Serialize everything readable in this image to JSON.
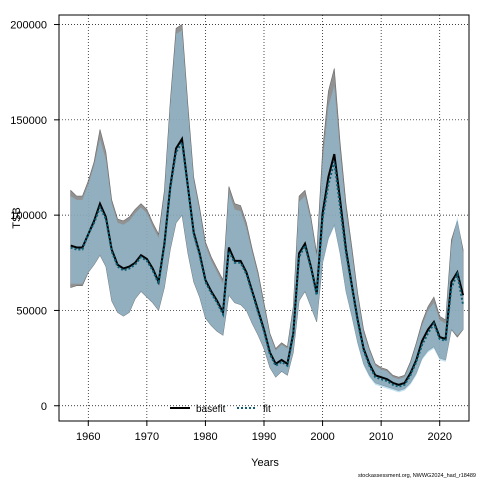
{
  "chart_data": {
    "type": "area",
    "title": "",
    "xlabel": "Years",
    "ylabel": "TSB",
    "xlim": [
      1955,
      2025
    ],
    "ylim": [
      -8000,
      205000
    ],
    "xticks": [
      1960,
      1970,
      1980,
      1990,
      2000,
      2010,
      2020
    ],
    "xtick_labels": [
      "1960",
      "1970",
      "1980",
      "1990",
      "2000",
      "2010",
      "2020"
    ],
    "yticks": [
      0,
      50000,
      100000,
      150000,
      200000
    ],
    "ytick_labels": [
      "0",
      "50000",
      "100000",
      "150000",
      "200000"
    ],
    "grid": true,
    "legend_position": "bottom",
    "x": [
      1957,
      1958,
      1959,
      1960,
      1961,
      1962,
      1963,
      1964,
      1965,
      1966,
      1967,
      1968,
      1969,
      1970,
      1971,
      1972,
      1973,
      1974,
      1975,
      1976,
      1977,
      1978,
      1979,
      1980,
      1981,
      1982,
      1983,
      1984,
      1985,
      1986,
      1987,
      1988,
      1989,
      1990,
      1991,
      1992,
      1993,
      1994,
      1995,
      1996,
      1997,
      1998,
      1999,
      2000,
      2001,
      2002,
      2003,
      2004,
      2005,
      2006,
      2007,
      2008,
      2009,
      2010,
      2011,
      2012,
      2013,
      2014,
      2015,
      2016,
      2017,
      2018,
      2019,
      2020,
      2021,
      2022,
      2023,
      2024
    ],
    "series": [
      {
        "name": "basefit",
        "color": "#000000",
        "band_color": "#7f7f7f",
        "values": [
          84000,
          83000,
          83000,
          90000,
          97000,
          106000,
          99000,
          82000,
          74000,
          72000,
          73000,
          75000,
          79000,
          77000,
          72000,
          65000,
          85000,
          115000,
          135000,
          140000,
          115000,
          91000,
          80000,
          66000,
          60000,
          55000,
          49000,
          83000,
          76000,
          76000,
          70000,
          60000,
          50000,
          40000,
          28000,
          22000,
          24000,
          22000,
          38000,
          80000,
          85000,
          73000,
          59000,
          101000,
          120000,
          132000,
          108000,
          82000,
          63000,
          45000,
          30000,
          22000,
          16000,
          15000,
          14000,
          12000,
          11000,
          12000,
          17000,
          24000,
          34000,
          40000,
          44000,
          36000,
          35000,
          65000,
          70000,
          58000
        ],
        "lower": [
          62000,
          63000,
          63000,
          70000,
          74000,
          79000,
          73000,
          55000,
          49000,
          47000,
          49000,
          56000,
          60000,
          57000,
          54000,
          50000,
          62000,
          82000,
          96000,
          100000,
          80000,
          65000,
          57000,
          46000,
          42000,
          39000,
          37000,
          58000,
          54000,
          53000,
          50000,
          43000,
          37000,
          30000,
          20000,
          15000,
          18000,
          16000,
          28000,
          55000,
          60000,
          52000,
          44000,
          75000,
          88000,
          95000,
          80000,
          60000,
          47000,
          33000,
          22000,
          16000,
          12000,
          11000,
          10000,
          9000,
          8000,
          9000,
          12000,
          17000,
          25000,
          29000,
          31000,
          25000,
          24000,
          40000,
          36000,
          40000
        ],
        "upper": [
          113000,
          110000,
          110000,
          118000,
          128000,
          145000,
          133000,
          108000,
          98000,
          97000,
          99000,
          103000,
          106000,
          103000,
          96000,
          90000,
          113000,
          160000,
          198000,
          200000,
          158000,
          120000,
          104000,
          86000,
          78000,
          72000,
          66000,
          115000,
          106000,
          105000,
          96000,
          82000,
          70000,
          54000,
          38000,
          30000,
          33000,
          31000,
          52000,
          110000,
          113000,
          99000,
          80000,
          134000,
          165000,
          177000,
          138000,
          106000,
          83000,
          59000,
          40000,
          30000,
          22000,
          20000,
          19000,
          16000,
          15000,
          16000,
          23000,
          33000,
          44000,
          52000,
          57000,
          47000,
          45000,
          87000,
          97000,
          82000
        ]
      },
      {
        "name": "fit",
        "color": "#0d5f73",
        "band_color": "#8fc7e3",
        "values": [
          83000,
          82000,
          82000,
          90000,
          96000,
          104000,
          98000,
          81000,
          73000,
          71000,
          72000,
          74000,
          78000,
          76000,
          71000,
          64000,
          84000,
          114000,
          133000,
          138000,
          114000,
          90000,
          79000,
          65000,
          59000,
          54000,
          48000,
          81000,
          75000,
          75000,
          69000,
          59000,
          49000,
          39000,
          27000,
          21000,
          23000,
          21000,
          37000,
          78000,
          84000,
          72000,
          58000,
          98000,
          116000,
          128000,
          104000,
          80000,
          62000,
          44000,
          29000,
          21000,
          15000,
          14000,
          13000,
          11000,
          10000,
          11000,
          16000,
          23000,
          32000,
          38000,
          43000,
          35000,
          34000,
          62000,
          69000,
          53000
        ],
        "lower": [
          64000,
          64000,
          64000,
          70000,
          74000,
          79000,
          73000,
          55000,
          49000,
          47000,
          49000,
          56000,
          60000,
          57000,
          54000,
          50000,
          62000,
          82000,
          96000,
          100000,
          80000,
          65000,
          57000,
          46000,
          42000,
          39000,
          37000,
          58000,
          54000,
          53000,
          50000,
          43000,
          37000,
          30000,
          20000,
          15000,
          18000,
          16000,
          28000,
          55000,
          60000,
          52000,
          44000,
          74000,
          87000,
          94000,
          79000,
          59000,
          46000,
          32000,
          21000,
          15000,
          11000,
          10000,
          9000,
          8000,
          7000,
          8000,
          11000,
          16000,
          24000,
          28000,
          30000,
          24000,
          23000,
          40000,
          37000,
          40000
        ],
        "upper": [
          110000,
          108000,
          108000,
          116000,
          126000,
          140000,
          129000,
          106000,
          96000,
          95000,
          97000,
          101000,
          104000,
          101000,
          94000,
          88000,
          111000,
          158000,
          195000,
          197000,
          155000,
          118000,
          102000,
          84000,
          76000,
          70000,
          64000,
          112000,
          103000,
          102000,
          93000,
          80000,
          68000,
          52000,
          37000,
          29000,
          32000,
          30000,
          51000,
          107000,
          110000,
          97000,
          78000,
          128000,
          157000,
          168000,
          133000,
          102000,
          80000,
          57000,
          38000,
          29000,
          21000,
          19000,
          18000,
          15000,
          14000,
          15000,
          22000,
          32000,
          42000,
          50000,
          54000,
          45000,
          43000,
          84000,
          99000,
          80000
        ]
      }
    ]
  },
  "legend": [
    {
      "label": "basefit",
      "color": "#000000",
      "style": "solid"
    },
    {
      "label": "fit",
      "color": "#0d5f73",
      "style": "dotted"
    }
  ],
  "credit": "stockassessment.org, NWWG2024_had_r18489"
}
